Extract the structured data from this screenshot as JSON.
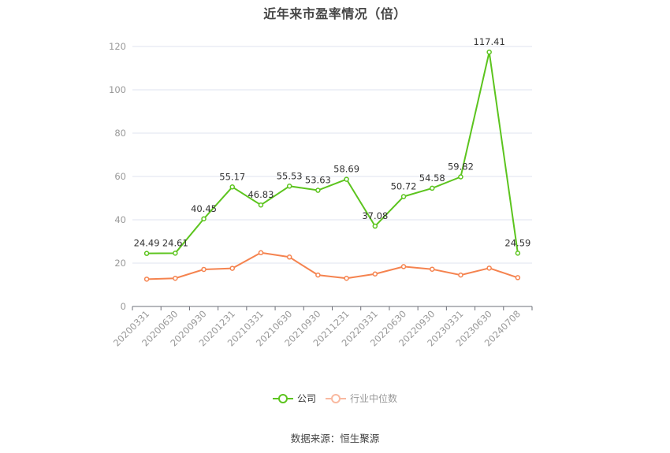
{
  "title": "近年来市盈率情况（倍）",
  "legend": {
    "company_label": "公司",
    "industry_label": "行业中位数"
  },
  "source": "数据来源：恒生聚源",
  "colors": {
    "company": "#5cc41e",
    "industry": "#f5834f",
    "industry_legend": "#f9b9a0",
    "grid": "#dfe3ef",
    "axis": "#6e7079"
  },
  "chart_data": {
    "type": "line",
    "title": "近年来市盈率情况（倍）",
    "xlabel": "",
    "ylabel": "",
    "ylim": [
      0,
      120
    ],
    "yticks": [
      0,
      20,
      40,
      60,
      80,
      100,
      120
    ],
    "grid": true,
    "legend_position": "bottom",
    "categories": [
      "20200331",
      "20200630",
      "20200930",
      "20201231",
      "20210331",
      "20210630",
      "20210930",
      "20211231",
      "20220331",
      "20220630",
      "20220930",
      "20230331",
      "20230630",
      "20240708"
    ],
    "series": [
      {
        "name": "公司",
        "values": [
          24.49,
          24.61,
          40.45,
          55.17,
          46.83,
          55.53,
          53.63,
          58.69,
          37.08,
          50.72,
          54.58,
          59.82,
          117.41,
          24.59
        ],
        "labels_shown": true
      },
      {
        "name": "行业中位数",
        "values": [
          12.6,
          13.0,
          17.1,
          17.6,
          24.8,
          22.8,
          14.5,
          13.0,
          15.0,
          18.4,
          17.2,
          14.5,
          17.7,
          13.3
        ],
        "labels_shown": false
      }
    ]
  }
}
